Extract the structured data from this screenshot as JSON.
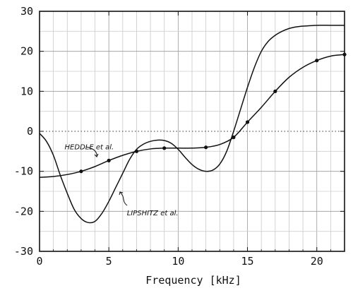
{
  "chart_data": {
    "type": "line",
    "title": "",
    "xlabel": "Frequency [kHz]",
    "ylabel": "",
    "xlim": [
      0,
      22
    ],
    "ylim": [
      -30,
      30
    ],
    "x_ticks": [
      "0",
      "5",
      "10",
      "15",
      "20"
    ],
    "y_ticks": [
      "30",
      "20",
      "10",
      "0",
      "-10",
      "-20",
      "-30"
    ],
    "grid": true,
    "zero_line": "dotted",
    "series": [
      {
        "name": "HEDDLE et al.",
        "markers": true,
        "color": "#111111",
        "x": [
          0,
          1,
          2,
          3,
          4,
          5,
          6,
          7,
          8,
          9,
          10,
          11,
          12,
          13,
          14,
          15,
          16,
          17,
          18,
          19,
          20,
          21,
          22
        ],
        "y": [
          -11.5,
          -11.3,
          -10.8,
          -10,
          -8.8,
          -7.3,
          -6,
          -5,
          -4.4,
          -4.2,
          -4.2,
          -4.2,
          -4,
          -3.3,
          -1.5,
          2.3,
          6,
          10,
          13.5,
          16,
          17.7,
          18.8,
          19.2
        ],
        "marker_x": [
          3,
          5,
          7,
          9,
          12,
          14,
          15,
          17,
          20,
          22
        ]
      },
      {
        "name": "LIPSHITZ et al.",
        "markers": false,
        "color": "#111111",
        "x": [
          0,
          0.5,
          1,
          1.5,
          2,
          2.5,
          3,
          3.5,
          4,
          4.5,
          5,
          5.5,
          6,
          6.5,
          7,
          7.5,
          8,
          8.5,
          9,
          9.5,
          10,
          10.5,
          11,
          11.5,
          12,
          12.5,
          13,
          13.5,
          14,
          14.5,
          15,
          15.5,
          16,
          16.5,
          17,
          17.5,
          18,
          18.5,
          19,
          19.5,
          20,
          21,
          22
        ],
        "y": [
          -0.5,
          -2.5,
          -6,
          -11,
          -15.5,
          -19.5,
          -21.8,
          -22.8,
          -22.5,
          -20.5,
          -17.5,
          -14,
          -10.5,
          -7,
          -4.5,
          -3.2,
          -2.5,
          -2.2,
          -2.3,
          -3,
          -4.5,
          -6.5,
          -8.3,
          -9.5,
          -10,
          -9.7,
          -8.2,
          -5,
          0,
          5.5,
          11,
          16,
          20,
          22.5,
          24,
          25,
          25.7,
          26.1,
          26.3,
          26.4,
          26.5,
          26.5,
          26.5
        ]
      }
    ],
    "annotations": [
      {
        "text": "HEDDLE et al.",
        "x": 4,
        "y": -4
      },
      {
        "text": "LIPSHITZ et al.",
        "x": 6.3,
        "y": -20.5
      }
    ]
  }
}
